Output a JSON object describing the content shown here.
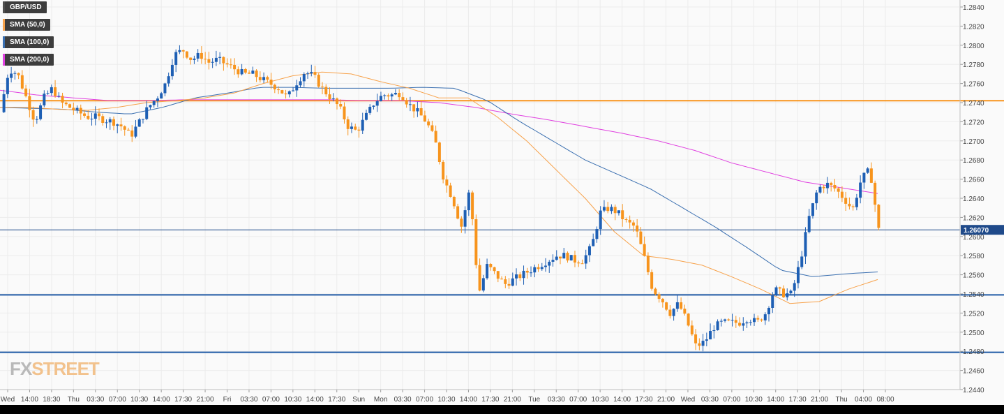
{
  "legend": [
    {
      "label": "GBP/USD",
      "color": "#4e4e4e"
    },
    {
      "label": "SMA (50,0)",
      "color": "#f7a24b"
    },
    {
      "label": "SMA (100,0)",
      "color": "#3a6fb0"
    },
    {
      "label": "SMA (200,0)",
      "color": "#e040e0"
    }
  ],
  "logo": {
    "fx": "FX",
    "street": "STREET"
  },
  "colors": {
    "up": "#1e5fb4",
    "down": "#f7941d",
    "sma50": "#f7a24b",
    "sma100": "#3a6fb0",
    "sma200": "#e040e0",
    "resistance": "#f7941d",
    "support": "#1f5aa6",
    "price_line": "#1f4a8a",
    "grid": "#ececec",
    "background": "#fafafa"
  },
  "chart_data": {
    "type": "candlestick",
    "symbol": "GBP/USD",
    "timeframe": "15m",
    "ylim": [
      1.244,
      1.285
    ],
    "y_ticks": [
      "1.2840",
      "1.2820",
      "1.2800",
      "1.2780",
      "1.2760",
      "1.2740",
      "1.2720",
      "1.2700",
      "1.2680",
      "1.2660",
      "1.2640",
      "1.2620",
      "1.2600",
      "1.2580",
      "1.2560",
      "1.2540",
      "1.2520",
      "1.2500",
      "1.2480",
      "1.2460",
      "1.2440"
    ],
    "x_ticks": [
      "Wed",
      "14:00",
      "18:30",
      "Thu",
      "03:30",
      "07:00",
      "10:30",
      "14:00",
      "17:30",
      "21:00",
      "Fri",
      "03:30",
      "07:00",
      "10:30",
      "14:00",
      "17:30",
      "Sun",
      "Mon",
      "03:30",
      "07:00",
      "10:30",
      "14:00",
      "17:30",
      "21:00",
      "Tue",
      "03:30",
      "07:00",
      "10:30",
      "14:00",
      "17:30",
      "21:00",
      "Wed",
      "03:30",
      "07:00",
      "10:30",
      "14:00",
      "17:30",
      "21:00",
      "Thu",
      "04:00",
      "08:00"
    ],
    "current_price": {
      "label": "1.26070",
      "value": 1.2607
    },
    "horizontal_levels": [
      {
        "value": 1.2742,
        "kind": "resistance"
      },
      {
        "value": 1.2539,
        "kind": "support"
      },
      {
        "value": 1.2479,
        "kind": "support"
      }
    ],
    "price_path": [
      1.273,
      1.2775,
      1.277,
      1.2745,
      1.272,
      1.2745,
      1.2755,
      1.274,
      1.2735,
      1.273,
      1.2725,
      1.2725,
      1.2722,
      1.272,
      1.2715,
      1.2705,
      1.272,
      1.2735,
      1.2745,
      1.276,
      1.279,
      1.2795,
      1.2785,
      1.279,
      1.2782,
      1.2785,
      1.278,
      1.2775,
      1.277,
      1.277,
      1.2765,
      1.276,
      1.2755,
      1.2745,
      1.276,
      1.2772,
      1.2768,
      1.2755,
      1.2745,
      1.2735,
      1.2715,
      1.271,
      1.2725,
      1.274,
      1.2748,
      1.2748,
      1.275,
      1.2738,
      1.273,
      1.272,
      1.27,
      1.266,
      1.264,
      1.261,
      1.265,
      1.254,
      1.257,
      1.256,
      1.255,
      1.2555,
      1.256,
      1.2565,
      1.257,
      1.2575,
      1.258,
      1.258,
      1.2575,
      1.2575,
      1.259,
      1.2625,
      1.263,
      1.2625,
      1.2615,
      1.261,
      1.258,
      1.2545,
      1.2535,
      1.252,
      1.253,
      1.251,
      1.2485,
      1.249,
      1.2505,
      1.251,
      1.251,
      1.251,
      1.2515,
      1.251,
      1.252,
      1.2545,
      1.254,
      1.254,
      1.2575,
      1.262,
      1.265,
      1.2655,
      1.265,
      1.264,
      1.2628,
      1.266,
      1.267,
      1.2607
    ],
    "sma50_path": [
      1.2735,
      1.2735,
      1.2733,
      1.2732,
      1.2735,
      1.274,
      1.2742,
      1.2745,
      1.275,
      1.276,
      1.2768,
      1.2772,
      1.277,
      1.2762,
      1.2755,
      1.2745,
      1.2745,
      1.2725,
      1.27,
      1.267,
      1.264,
      1.2605,
      1.258,
      1.2576,
      1.257,
      1.2558,
      1.2545,
      1.253,
      1.2532,
      1.2545,
      1.2555
    ],
    "sma100_path": [
      1.2735,
      1.2734,
      1.2733,
      1.273,
      1.2728,
      1.2735,
      1.2745,
      1.275,
      1.2756,
      1.2756,
      1.2755,
      1.2755,
      1.2755,
      1.2756,
      1.2755,
      1.2742,
      1.272,
      1.27,
      1.268,
      1.2665,
      1.265,
      1.263,
      1.261,
      1.2588,
      1.2565,
      1.2558,
      1.2561,
      1.2563
    ],
    "sma200_path": [
      1.2753,
      1.2748,
      1.2745,
      1.2742,
      1.2742,
      1.2743,
      1.2743,
      1.2743,
      1.2743,
      1.2743,
      1.2742,
      1.2742,
      1.274,
      1.2735,
      1.2728,
      1.2722,
      1.2715,
      1.2708,
      1.27,
      1.269,
      1.2677,
      1.2667,
      1.2657,
      1.2651,
      1.2645
    ]
  }
}
